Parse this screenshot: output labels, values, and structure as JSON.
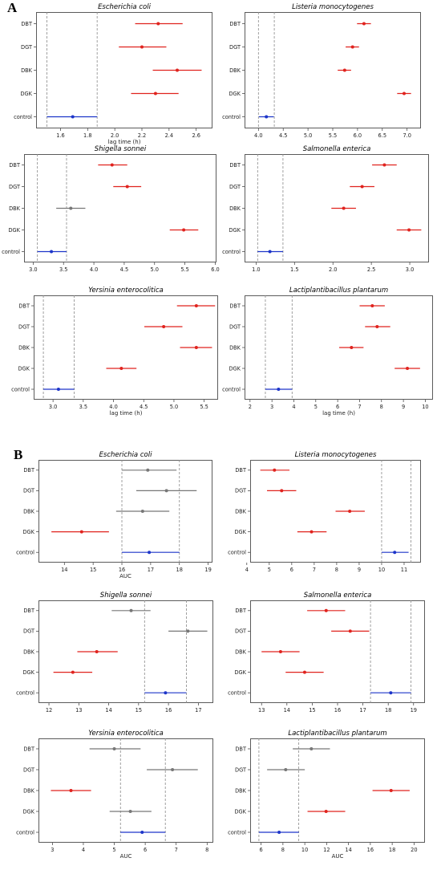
{
  "figure": {
    "panel_a_label": "A",
    "panel_b_label": "B"
  },
  "chart_data": [
    {
      "type": "scatter",
      "panel": "A",
      "title": "Escherichia coli",
      "xlabel": "lag time (h)",
      "xlim": [
        1.42,
        2.72
      ],
      "xticks": [
        1.6,
        1.8,
        2.0,
        2.2,
        2.4,
        2.6
      ],
      "xtick_labels": [
        "1.6",
        "1.8",
        "2.0",
        "2.2",
        "2.4",
        "2.6"
      ],
      "categories": [
        "DBT",
        "DGT",
        "DBK",
        "DGK",
        "control"
      ],
      "vlines": [
        1.5,
        1.87
      ],
      "points": [
        {
          "label": "DBT",
          "mean": 2.32,
          "low": 2.15,
          "high": 2.5,
          "color": "#e0231e"
        },
        {
          "label": "DGT",
          "mean": 2.2,
          "low": 2.03,
          "high": 2.38,
          "color": "#e0231e"
        },
        {
          "label": "DBK",
          "mean": 2.46,
          "low": 2.28,
          "high": 2.64,
          "color": "#e0231e"
        },
        {
          "label": "DGK",
          "mean": 2.3,
          "low": 2.12,
          "high": 2.47,
          "color": "#e0231e"
        },
        {
          "label": "control",
          "mean": 1.69,
          "low": 1.5,
          "high": 1.87,
          "color": "#1d35c9"
        }
      ]
    },
    {
      "type": "scatter",
      "panel": "A",
      "title": "Listeria monocytogenes",
      "xlabel": "",
      "xlim": [
        3.72,
        7.28
      ],
      "xticks": [
        4.0,
        4.5,
        5.0,
        5.5,
        6.0,
        6.5,
        7.0
      ],
      "xtick_labels": [
        "4.0",
        "4.5",
        "5.0",
        "5.5",
        "6.0",
        "6.5",
        "7.0"
      ],
      "categories": [
        "DBT",
        "DGT",
        "DBK",
        "DGK",
        "control"
      ],
      "vlines": [
        4.0,
        4.32
      ],
      "points": [
        {
          "label": "DBT",
          "mean": 6.13,
          "low": 5.99,
          "high": 6.27,
          "color": "#e0231e"
        },
        {
          "label": "DGT",
          "mean": 5.9,
          "low": 5.76,
          "high": 6.03,
          "color": "#e0231e"
        },
        {
          "label": "DBK",
          "mean": 5.74,
          "low": 5.6,
          "high": 5.87,
          "color": "#e0231e"
        },
        {
          "label": "DGK",
          "mean": 6.94,
          "low": 6.8,
          "high": 7.08,
          "color": "#e0231e"
        },
        {
          "label": "control",
          "mean": 4.16,
          "low": 4.01,
          "high": 4.31,
          "color": "#1d35c9"
        }
      ]
    },
    {
      "type": "scatter",
      "panel": "A",
      "title": "Shigella sonnei",
      "xlabel": "",
      "xlim": [
        2.85,
        6.02
      ],
      "xticks": [
        3.0,
        3.5,
        4.0,
        4.5,
        5.0,
        5.5,
        6.0
      ],
      "xtick_labels": [
        "3.0",
        "3.5",
        "4.0",
        "4.5",
        "5.0",
        "5.5",
        "6.0"
      ],
      "categories": [
        "DBT",
        "DGT",
        "DBK",
        "DGK",
        "control"
      ],
      "vlines": [
        3.07,
        3.55
      ],
      "points": [
        {
          "label": "DBT",
          "mean": 4.3,
          "low": 4.07,
          "high": 4.55,
          "color": "#e0231e"
        },
        {
          "label": "DGT",
          "mean": 4.55,
          "low": 4.32,
          "high": 4.78,
          "color": "#e0231e"
        },
        {
          "label": "DBK",
          "mean": 3.62,
          "low": 3.38,
          "high": 3.86,
          "color": "#777777"
        },
        {
          "label": "DGK",
          "mean": 5.48,
          "low": 5.25,
          "high": 5.72,
          "color": "#e0231e"
        },
        {
          "label": "control",
          "mean": 3.3,
          "low": 3.07,
          "high": 3.55,
          "color": "#1d35c9"
        }
      ]
    },
    {
      "type": "scatter",
      "panel": "A",
      "title": "Salmonella enterica",
      "xlabel": "",
      "xlim": [
        0.85,
        3.25
      ],
      "xticks": [
        1.0,
        1.5,
        2.0,
        2.5,
        3.0
      ],
      "xtick_labels": [
        "1.0",
        "1.5",
        "2.0",
        "2.5",
        "3.0"
      ],
      "categories": [
        "DBT",
        "DGT",
        "DBK",
        "DGK",
        "control"
      ],
      "vlines": [
        1.02,
        1.35
      ],
      "points": [
        {
          "label": "DBT",
          "mean": 2.67,
          "low": 2.51,
          "high": 2.83,
          "color": "#e0231e"
        },
        {
          "label": "DGT",
          "mean": 2.38,
          "low": 2.22,
          "high": 2.54,
          "color": "#e0231e"
        },
        {
          "label": "DBK",
          "mean": 2.14,
          "low": 1.98,
          "high": 2.3,
          "color": "#e0231e"
        },
        {
          "label": "DGK",
          "mean": 2.99,
          "low": 2.83,
          "high": 3.15,
          "color": "#e0231e"
        },
        {
          "label": "control",
          "mean": 1.18,
          "low": 1.02,
          "high": 1.35,
          "color": "#1d35c9"
        }
      ]
    },
    {
      "type": "scatter",
      "panel": "A",
      "title": "Yersinia enterocolitica",
      "xlabel": "lag time (h)",
      "xlim": [
        2.68,
        5.73
      ],
      "xticks": [
        3.0,
        3.5,
        4.0,
        4.5,
        5.0,
        5.5
      ],
      "xtick_labels": [
        "3.0",
        "3.5",
        "4.0",
        "4.5",
        "5.0",
        "5.5"
      ],
      "categories": [
        "DBT",
        "DGT",
        "DBK",
        "DGK",
        "control"
      ],
      "vlines": [
        2.84,
        3.35
      ],
      "points": [
        {
          "label": "DBT",
          "mean": 5.37,
          "low": 5.05,
          "high": 5.68,
          "color": "#e0231e"
        },
        {
          "label": "DGT",
          "mean": 4.83,
          "low": 4.51,
          "high": 5.14,
          "color": "#e0231e"
        },
        {
          "label": "DBK",
          "mean": 5.37,
          "low": 5.1,
          "high": 5.63,
          "color": "#e0231e"
        },
        {
          "label": "DGK",
          "mean": 4.13,
          "low": 3.88,
          "high": 4.38,
          "color": "#e0231e"
        },
        {
          "label": "control",
          "mean": 3.09,
          "low": 2.84,
          "high": 3.35,
          "color": "#1d35c9"
        }
      ]
    },
    {
      "type": "scatter",
      "panel": "A",
      "title": "Lactiplantibacillus plantarum",
      "xlabel": "lag time (h)",
      "xlim": [
        1.75,
        10.35
      ],
      "xticks": [
        2,
        3,
        4,
        5,
        6,
        7,
        8,
        9,
        10
      ],
      "xtick_labels": [
        "2",
        "3",
        "4",
        "5",
        "6",
        "7",
        "8",
        "9",
        "10"
      ],
      "categories": [
        "DBT",
        "DGT",
        "DBK",
        "DGK",
        "control"
      ],
      "vlines": [
        2.7,
        3.92
      ],
      "points": [
        {
          "label": "DBT",
          "mean": 7.58,
          "low": 7.0,
          "high": 8.15,
          "color": "#e0231e"
        },
        {
          "label": "DGT",
          "mean": 7.8,
          "low": 7.25,
          "high": 8.4,
          "color": "#e0231e"
        },
        {
          "label": "DBK",
          "mean": 6.63,
          "low": 6.07,
          "high": 7.18,
          "color": "#e0231e"
        },
        {
          "label": "DGK",
          "mean": 9.18,
          "low": 8.6,
          "high": 9.76,
          "color": "#e0231e"
        },
        {
          "label": "control",
          "mean": 3.3,
          "low": 2.7,
          "high": 3.92,
          "color": "#1d35c9"
        }
      ]
    },
    {
      "type": "scatter",
      "panel": "B",
      "title": "Escherichia coli",
      "xlabel": "AUC",
      "xlim": [
        13.1,
        19.15
      ],
      "xticks": [
        14,
        15,
        16,
        17,
        18,
        19
      ],
      "xtick_labels": [
        "14",
        "15",
        "16",
        "17",
        "18",
        "19"
      ],
      "categories": [
        "DBT",
        "DGT",
        "DBK",
        "DGK",
        "control"
      ],
      "vlines": [
        16.0,
        18.0
      ],
      "points": [
        {
          "label": "DBT",
          "mean": 16.9,
          "low": 16.0,
          "high": 17.9,
          "color": "#777777"
        },
        {
          "label": "DGT",
          "mean": 17.55,
          "low": 16.5,
          "high": 18.6,
          "color": "#777777"
        },
        {
          "label": "DBK",
          "mean": 16.72,
          "low": 15.8,
          "high": 17.65,
          "color": "#777777"
        },
        {
          "label": "DGK",
          "mean": 14.6,
          "low": 13.55,
          "high": 15.55,
          "color": "#e0231e"
        },
        {
          "label": "control",
          "mean": 16.95,
          "low": 16.0,
          "high": 18.0,
          "color": "#1d35c9"
        }
      ]
    },
    {
      "type": "scatter",
      "panel": "B",
      "title": "Listeria monocytogenes",
      "xlabel": "",
      "xlim": [
        4.15,
        11.75
      ],
      "xticks": [
        4,
        5,
        6,
        7,
        8,
        9,
        10,
        11
      ],
      "xtick_labels": [
        "4",
        "5",
        "6",
        "7",
        "8",
        "9",
        "10",
        "11"
      ],
      "categories": [
        "DBT",
        "DGT",
        "DBK",
        "DGK",
        "control"
      ],
      "vlines": [
        10.0,
        11.3
      ],
      "points": [
        {
          "label": "DBT",
          "mean": 5.23,
          "low": 4.6,
          "high": 5.9,
          "color": "#e0231e"
        },
        {
          "label": "DGT",
          "mean": 5.55,
          "low": 4.9,
          "high": 6.2,
          "color": "#e0231e"
        },
        {
          "label": "DBK",
          "mean": 8.58,
          "low": 7.95,
          "high": 9.25,
          "color": "#e0231e"
        },
        {
          "label": "DGK",
          "mean": 6.88,
          "low": 6.25,
          "high": 7.55,
          "color": "#e0231e"
        },
        {
          "label": "control",
          "mean": 10.58,
          "low": 10.0,
          "high": 11.2,
          "color": "#1d35c9"
        }
      ]
    },
    {
      "type": "scatter",
      "panel": "B",
      "title": "Shigella sonnei",
      "xlabel": "",
      "xlim": [
        11.65,
        17.5
      ],
      "xticks": [
        12,
        13,
        14,
        15,
        16,
        17
      ],
      "xtick_labels": [
        "12",
        "13",
        "14",
        "15",
        "16",
        "17"
      ],
      "categories": [
        "DBT",
        "DGT",
        "DBK",
        "DGK",
        "control"
      ],
      "vlines": [
        15.2,
        16.6
      ],
      "points": [
        {
          "label": "DBT",
          "mean": 14.75,
          "low": 14.1,
          "high": 15.4,
          "color": "#777777"
        },
        {
          "label": "DGT",
          "mean": 16.65,
          "low": 16.0,
          "high": 17.3,
          "color": "#777777"
        },
        {
          "label": "DBK",
          "mean": 13.6,
          "low": 12.95,
          "high": 14.3,
          "color": "#e0231e"
        },
        {
          "label": "DGK",
          "mean": 12.8,
          "low": 12.15,
          "high": 13.45,
          "color": "#e0231e"
        },
        {
          "label": "control",
          "mean": 15.9,
          "low": 15.2,
          "high": 16.6,
          "color": "#1d35c9"
        }
      ]
    },
    {
      "type": "scatter",
      "panel": "B",
      "title": "Salmonella enterica",
      "xlabel": "",
      "xlim": [
        12.55,
        19.45
      ],
      "xticks": [
        13,
        14,
        15,
        16,
        17,
        18,
        19
      ],
      "xtick_labels": [
        "13",
        "14",
        "15",
        "16",
        "17",
        "18",
        "19"
      ],
      "categories": [
        "DBT",
        "DGT",
        "DBK",
        "DGK",
        "control"
      ],
      "vlines": [
        17.3,
        18.9
      ],
      "points": [
        {
          "label": "DBT",
          "mean": 15.55,
          "low": 14.8,
          "high": 16.3,
          "color": "#e0231e"
        },
        {
          "label": "DGT",
          "mean": 16.5,
          "low": 15.75,
          "high": 17.25,
          "color": "#e0231e"
        },
        {
          "label": "DBK",
          "mean": 13.75,
          "low": 13.0,
          "high": 14.5,
          "color": "#e0231e"
        },
        {
          "label": "DGK",
          "mean": 14.7,
          "low": 13.95,
          "high": 15.45,
          "color": "#e0231e"
        },
        {
          "label": "control",
          "mean": 18.1,
          "low": 17.3,
          "high": 18.9,
          "color": "#1d35c9"
        }
      ]
    },
    {
      "type": "scatter",
      "panel": "B",
      "title": "Yersinia enterocolitica",
      "xlabel": "AUC",
      "xlim": [
        2.55,
        8.2
      ],
      "xticks": [
        3,
        4,
        5,
        6,
        7,
        8
      ],
      "xtick_labels": [
        "3",
        "4",
        "5",
        "6",
        "7",
        "8"
      ],
      "categories": [
        "DBT",
        "DGT",
        "DBK",
        "DGK",
        "control"
      ],
      "vlines": [
        5.2,
        6.65
      ],
      "points": [
        {
          "label": "DBT",
          "mean": 5.0,
          "low": 4.2,
          "high": 5.85,
          "color": "#777777"
        },
        {
          "label": "DGT",
          "mean": 6.88,
          "low": 6.05,
          "high": 7.7,
          "color": "#777777"
        },
        {
          "label": "DBK",
          "mean": 3.6,
          "low": 2.95,
          "high": 4.25,
          "color": "#e0231e"
        },
        {
          "label": "DGK",
          "mean": 5.52,
          "low": 4.85,
          "high": 6.2,
          "color": "#777777"
        },
        {
          "label": "control",
          "mean": 5.9,
          "low": 5.2,
          "high": 6.65,
          "color": "#1d35c9"
        }
      ]
    },
    {
      "type": "scatter",
      "panel": "B",
      "title": "Lactiplantibacillus plantarum",
      "xlabel": "AUC",
      "xlim": [
        5.0,
        21.0
      ],
      "xticks": [
        6,
        8,
        10,
        12,
        14,
        16,
        18,
        20
      ],
      "xtick_labels": [
        "6",
        "8",
        "10",
        "12",
        "14",
        "16",
        "18",
        "20"
      ],
      "categories": [
        "DBT",
        "DGT",
        "DBK",
        "DGK",
        "control"
      ],
      "vlines": [
        5.8,
        9.45
      ],
      "points": [
        {
          "label": "DBT",
          "mean": 10.6,
          "low": 8.9,
          "high": 12.3,
          "color": "#777777"
        },
        {
          "label": "DGT",
          "mean": 8.25,
          "low": 6.55,
          "high": 10.0,
          "color": "#777777"
        },
        {
          "label": "DBK",
          "mean": 17.9,
          "low": 16.2,
          "high": 19.6,
          "color": "#e0231e"
        },
        {
          "label": "DGK",
          "mean": 11.95,
          "low": 10.25,
          "high": 13.7,
          "color": "#e0231e"
        },
        {
          "label": "control",
          "mean": 7.65,
          "low": 5.8,
          "high": 9.45,
          "color": "#1d35c9"
        }
      ]
    }
  ]
}
